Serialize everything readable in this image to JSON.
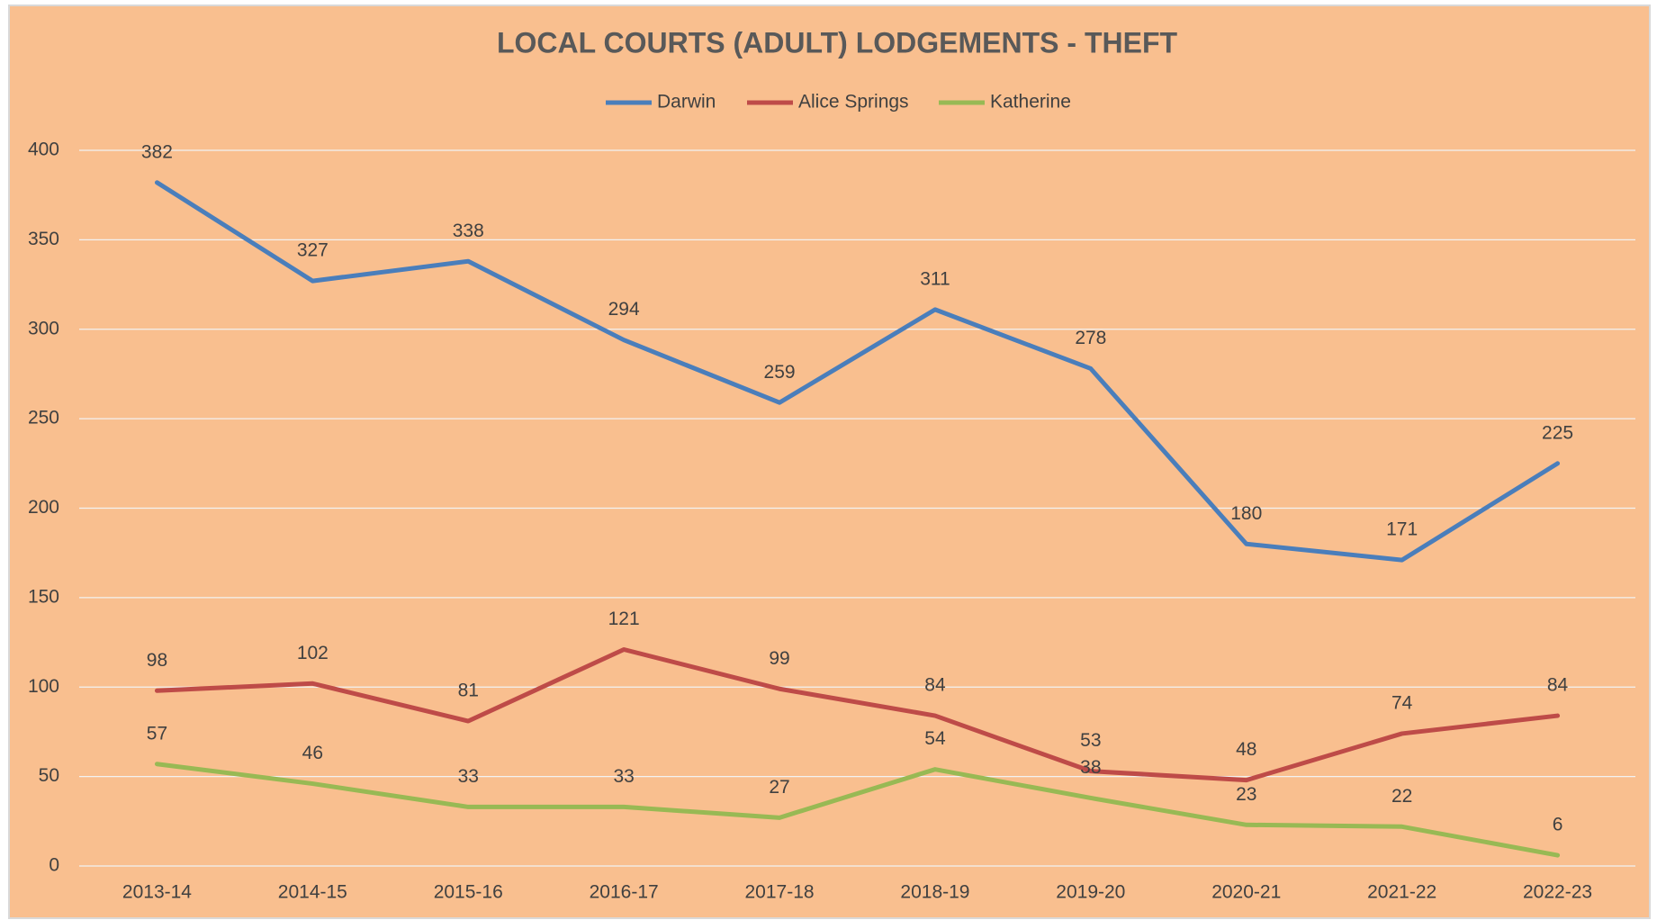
{
  "chart_data": {
    "type": "line",
    "title": "LOCAL COURTS (ADULT) LODGEMENTS - THEFT",
    "categories": [
      "2013-14",
      "2014-15",
      "2015-16",
      "2016-17",
      "2017-18",
      "2018-19",
      "2019-20",
      "2020-21",
      "2021-22",
      "2022-23"
    ],
    "series": [
      {
        "name": "Darwin",
        "color": "#4a7ebb",
        "values": [
          382,
          327,
          338,
          294,
          259,
          311,
          278,
          180,
          171,
          225
        ]
      },
      {
        "name": "Alice Springs",
        "color": "#be4b48",
        "values": [
          98,
          102,
          81,
          121,
          99,
          84,
          53,
          48,
          74,
          84
        ]
      },
      {
        "name": "Katherine",
        "color": "#98b954",
        "values": [
          57,
          46,
          33,
          33,
          27,
          54,
          38,
          23,
          22,
          6
        ]
      }
    ],
    "ylim": [
      0,
      400
    ],
    "yticks": [
      0,
      50,
      100,
      150,
      200,
      250,
      300,
      350,
      400
    ],
    "grid": true,
    "legend": "top"
  }
}
